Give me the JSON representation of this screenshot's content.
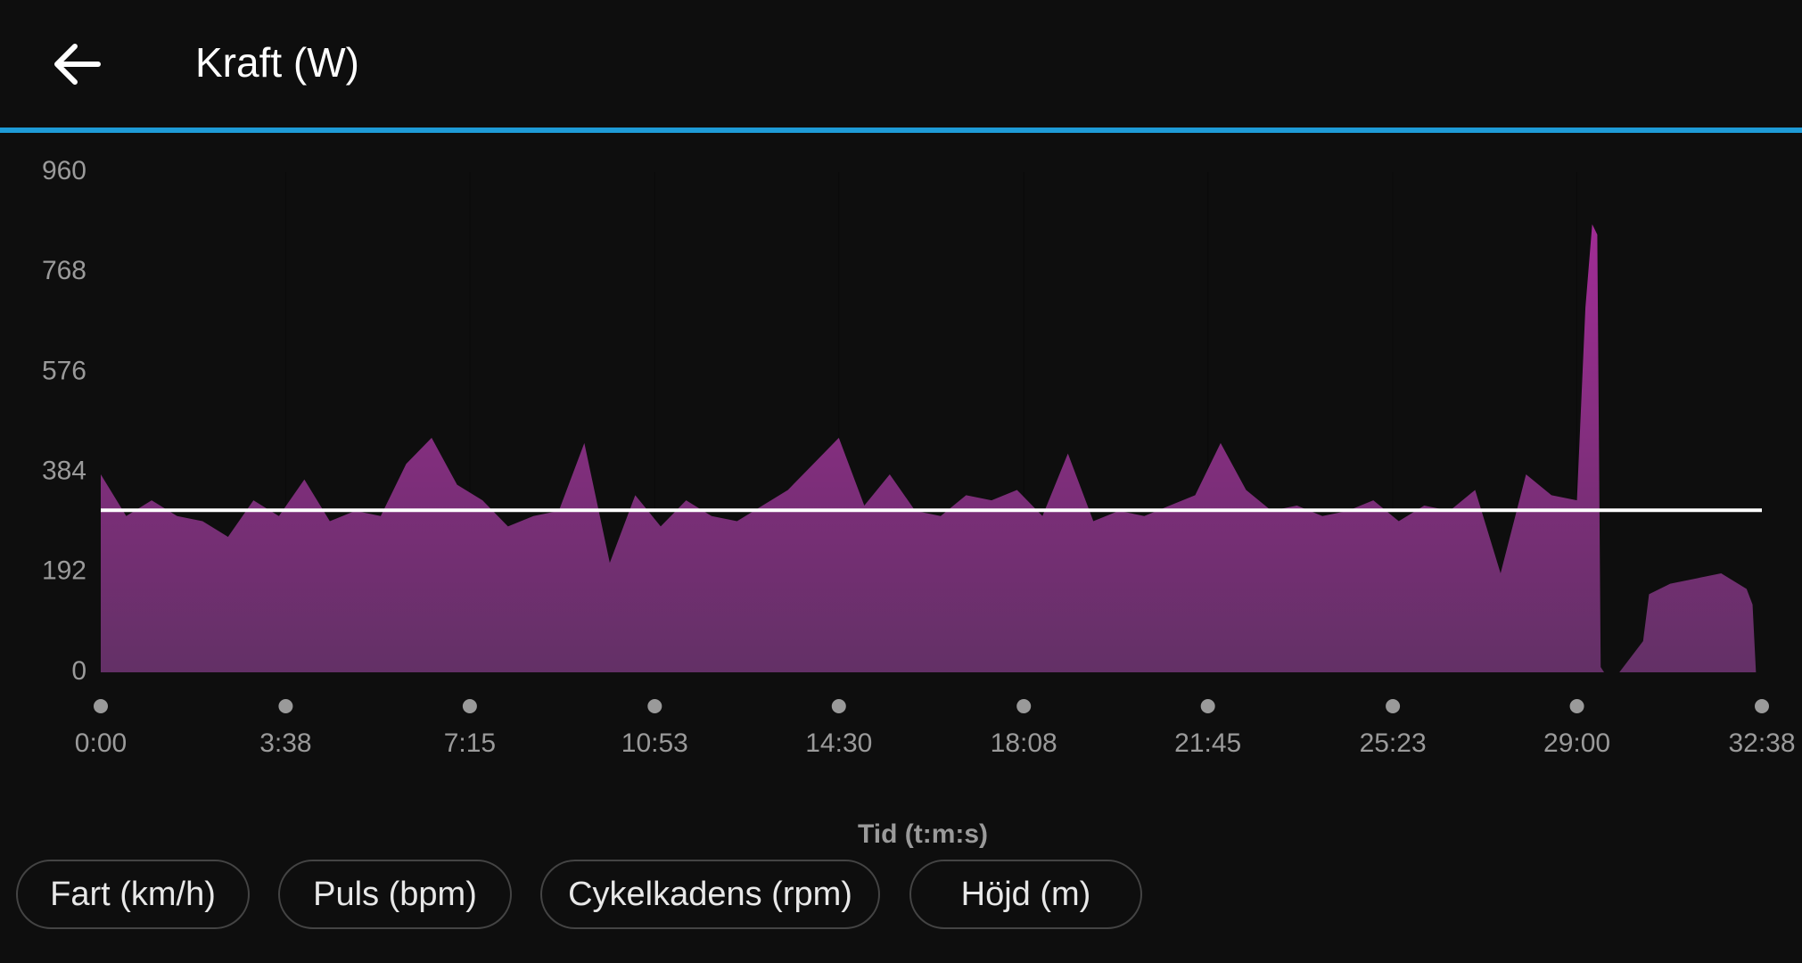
{
  "chart_data": {
    "type": "area",
    "title": "Kraft (W)",
    "x_label": "Tid (t:m:s)",
    "x": [
      0,
      30,
      60,
      90,
      120,
      150,
      180,
      210,
      240,
      270,
      300,
      330,
      360,
      390,
      420,
      450,
      480,
      510,
      540,
      570,
      600,
      630,
      660,
      690,
      720,
      750,
      780,
      810,
      840,
      870,
      900,
      930,
      960,
      990,
      1020,
      1050,
      1080,
      1110,
      1140,
      1170,
      1200,
      1230,
      1260,
      1290,
      1320,
      1350,
      1380,
      1410,
      1440,
      1470,
      1500,
      1530,
      1560,
      1590,
      1620,
      1650,
      1680,
      1710,
      1740,
      1750,
      1758,
      1764,
      1768,
      1772,
      1790,
      1818,
      1825,
      1850,
      1880,
      1910,
      1940,
      1947,
      1951
    ],
    "values": [
      380,
      300,
      330,
      300,
      290,
      260,
      330,
      300,
      370,
      290,
      310,
      300,
      400,
      450,
      360,
      330,
      280,
      300,
      310,
      440,
      210,
      340,
      280,
      330,
      300,
      290,
      320,
      350,
      400,
      450,
      320,
      380,
      310,
      300,
      340,
      330,
      350,
      300,
      420,
      290,
      310,
      300,
      320,
      340,
      440,
      350,
      310,
      320,
      300,
      310,
      330,
      290,
      320,
      310,
      350,
      190,
      380,
      340,
      330,
      700,
      860,
      840,
      10,
      0,
      0,
      60,
      150,
      170,
      180,
      190,
      160,
      130,
      0
    ],
    "color": "#8e2a86",
    "reference_line": 311,
    "xlim": [
      0,
      1958
    ],
    "xticks": [
      {
        "value": 0,
        "label": "0:00"
      },
      {
        "value": 218,
        "label": "3:38"
      },
      {
        "value": 435,
        "label": "7:15"
      },
      {
        "value": 653,
        "label": "10:53"
      },
      {
        "value": 870,
        "label": "14:30"
      },
      {
        "value": 1088,
        "label": "18:08"
      },
      {
        "value": 1305,
        "label": "21:45"
      },
      {
        "value": 1523,
        "label": "25:23"
      },
      {
        "value": 1740,
        "label": "29:00"
      },
      {
        "value": 1958,
        "label": "32:38"
      }
    ],
    "ylim": [
      0,
      960
    ],
    "yticks": [
      0,
      192,
      384,
      576,
      768,
      960
    ]
  },
  "buttons": [
    "Fart (km/h)",
    "Puls (bpm)",
    "Cykelkadens (rpm)",
    "Höjd (m)"
  ]
}
